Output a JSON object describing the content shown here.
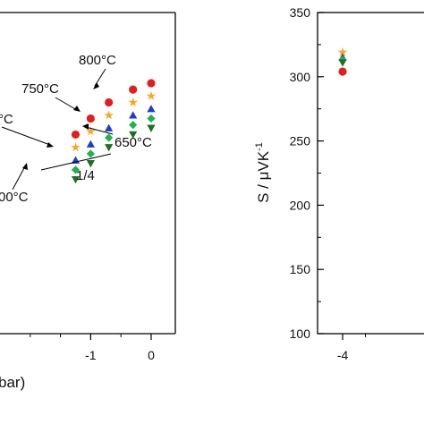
{
  "chart_data": [
    {
      "type": "scatter",
      "panel": "left",
      "xlabel_visible_fragment": "bar)",
      "x_tick_labels": [
        "-1",
        "0"
      ],
      "x_ticks": [
        -1,
        0
      ],
      "xlim": [
        -2.5,
        0.4
      ],
      "ylim": [
        0,
        100
      ],
      "annotations": [
        "800°C",
        "750°C",
        "°C",
        "650°C",
        "1/4",
        "00°C"
      ],
      "legend": "none",
      "grid": false,
      "series": [
        {
          "marker": "circle",
          "color": "#e02020",
          "x": [
            -1.25,
            -1.0,
            -0.7,
            -0.3,
            0.0
          ],
          "y": [
            62,
            67,
            72,
            76,
            78
          ]
        },
        {
          "marker": "star",
          "color": "#f5a623",
          "x": [
            -1.25,
            -1.0,
            -0.7,
            -0.3,
            0.0
          ],
          "y": [
            58,
            63,
            68,
            72,
            74
          ]
        },
        {
          "marker": "triangle-up",
          "color": "#1f3fbf",
          "x": [
            -1.25,
            -1.0,
            -0.7,
            -0.3,
            0.0
          ],
          "y": [
            54,
            59,
            64,
            68,
            70
          ]
        },
        {
          "marker": "diamond",
          "color": "#22b24c",
          "x": [
            -1.25,
            -1.0,
            -0.7,
            -0.3,
            0.0
          ],
          "y": [
            51,
            56,
            61,
            65,
            67
          ]
        },
        {
          "marker": "triangle-down",
          "color": "#1e6e24",
          "x": [
            -1.25,
            -1.0,
            -0.7,
            -0.3,
            0.0
          ],
          "y": [
            48,
            53,
            58,
            62,
            64
          ]
        }
      ]
    },
    {
      "type": "scatter",
      "panel": "right",
      "ylabel": "S / μVK",
      "ylabel_superscript": "-1",
      "y_tick_labels": [
        "100",
        "150",
        "200",
        "250",
        "300",
        "350"
      ],
      "y_ticks": [
        100,
        150,
        200,
        250,
        300,
        350
      ],
      "x_tick_labels": [
        "-4"
      ],
      "x_ticks": [
        -4
      ],
      "xlim": [
        -4.55,
        -2.0
      ],
      "ylim": [
        100,
        350
      ],
      "legend": "none",
      "grid": false,
      "series": [
        {
          "marker": "circle",
          "color": "#e02020",
          "x": [
            -4.0
          ],
          "y": [
            304
          ]
        },
        {
          "marker": "star",
          "color": "#f5a623",
          "x": [
            -4.0
          ],
          "y": [
            319
          ]
        },
        {
          "marker": "triangle-up",
          "color": "#1f3fbf",
          "x": [
            -4.0
          ],
          "y": [
            315
          ]
        },
        {
          "marker": "diamond",
          "color": "#22b24c",
          "x": [
            -4.0
          ],
          "y": [
            313
          ]
        },
        {
          "marker": "triangle-down",
          "color": "#1e6e24",
          "x": [
            -4.0
          ],
          "y": [
            311
          ]
        }
      ]
    }
  ]
}
